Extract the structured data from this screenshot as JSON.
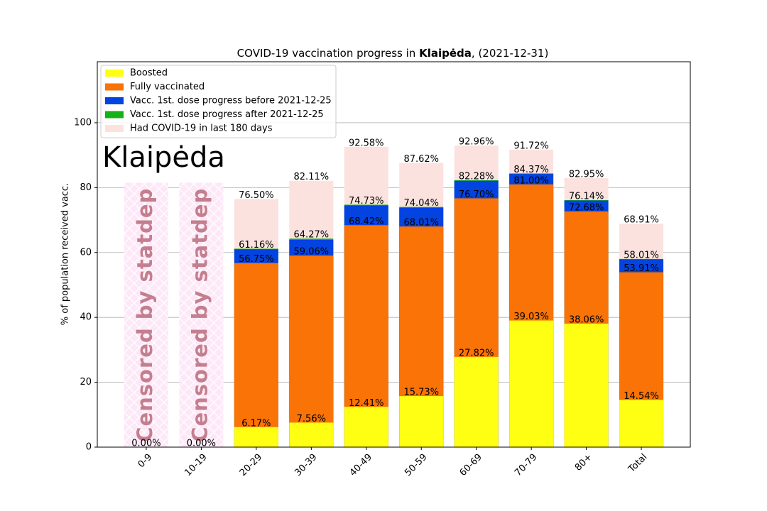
{
  "chart_data": {
    "type": "bar",
    "overlay": true,
    "title": [
      "COVID-19 vaccination progress in ",
      "Klaipėda",
      ", (2021-12-31)"
    ],
    "annotation": "Klaipėda",
    "ylabel": "% of population received vacc.",
    "categories": [
      "0-9",
      "10-19",
      "20-29",
      "30-39",
      "40-49",
      "50-59",
      "60-69",
      "70-79",
      "80+",
      "Total"
    ],
    "ylim": [
      0,
      118.8
    ],
    "yticks": [
      0,
      20,
      40,
      60,
      80,
      100
    ],
    "grid": true,
    "legend": "upper left",
    "censored": {
      "label": "Censored by statdep",
      "color": "#fde8f8",
      "text_color": "#c47f8e",
      "values": [
        81.5,
        81.5,
        null,
        null,
        null,
        null,
        null,
        null,
        null,
        null
      ]
    },
    "series": [
      {
        "name": "Boosted",
        "color": "#ffff14",
        "label_color": "#000000",
        "values": [
          0,
          0,
          6.17,
          7.56,
          12.41,
          15.73,
          27.82,
          39.03,
          38.06,
          14.54
        ],
        "value_labels": [
          "0.00%",
          "0.00%",
          "6.17%",
          "7.56%",
          "12.41%",
          "15.73%",
          "27.82%",
          "39.03%",
          "38.06%",
          "14.54%"
        ]
      },
      {
        "name": "Fully vaccinated",
        "color": "#f97306",
        "label_color": "#d4dcff",
        "values": [
          null,
          null,
          56.75,
          59.06,
          68.42,
          68.01,
          76.7,
          81.0,
          72.68,
          53.91
        ],
        "value_labels": [
          null,
          null,
          "56.75%",
          "59.06%",
          "68.42%",
          "68.01%",
          "76.70%",
          "81.00%",
          "72.68%",
          "53.91%"
        ]
      },
      {
        "name": "Vacc. 1st. dose progress before 2021-12-25",
        "color": "#0343df",
        "values": [
          null,
          null,
          61.0,
          63.9,
          74.5,
          73.8,
          82.1,
          84.2,
          76.0,
          57.9
        ]
      },
      {
        "name": "Vacc. 1st. dose progress after 2021-12-25",
        "color": "#15b01a",
        "label_color": "#000000",
        "values": [
          null,
          null,
          61.16,
          64.27,
          74.73,
          74.04,
          82.28,
          84.37,
          76.14,
          58.01
        ],
        "value_labels": [
          null,
          null,
          "61.16%",
          "64.27%",
          "74.73%",
          "74.04%",
          "82.28%",
          "84.37%",
          "76.14%",
          "58.01%"
        ]
      },
      {
        "name": "Had COVID-19 in last 180 days",
        "color": "#fbe2df",
        "label_color": "#c8c8c8",
        "values": [
          null,
          null,
          76.5,
          82.11,
          92.58,
          87.62,
          92.96,
          91.72,
          82.95,
          68.91
        ],
        "value_labels": [
          null,
          null,
          "76.50%",
          "82.11%",
          "92.58%",
          "87.62%",
          "92.96%",
          "91.72%",
          "82.95%",
          "68.91%"
        ]
      }
    ]
  }
}
